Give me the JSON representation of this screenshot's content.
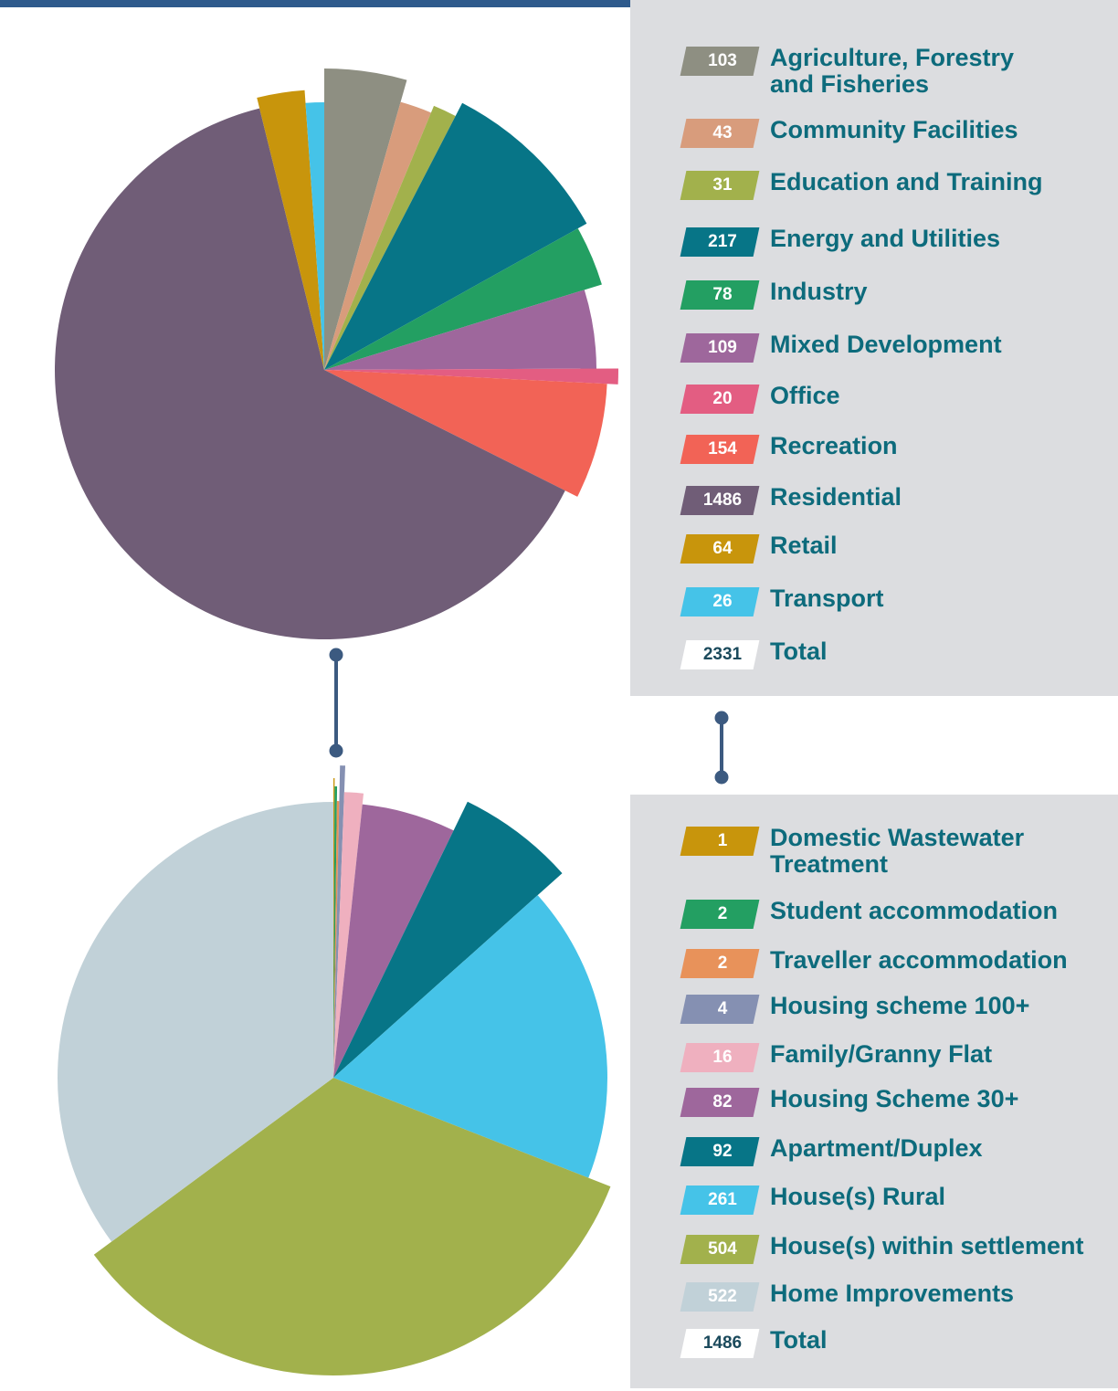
{
  "chart_data": [
    {
      "type": "pie",
      "categories": [
        "Agriculture, Forestry\nand Fisheries",
        "Community Facilities",
        "Education and Training",
        "Energy and Utilities",
        "Industry",
        "Mixed Development",
        "Office",
        "Recreation",
        "Residential",
        "Retail",
        "Transport"
      ],
      "values": [
        103,
        43,
        31,
        217,
        78,
        109,
        20,
        154,
        1486,
        64,
        26
      ],
      "colors": [
        "#8e8f82",
        "#d89c7c",
        "#a2b14c",
        "#077587",
        "#239f62",
        "#9e679c",
        "#e35d82",
        "#f26356",
        "#705d77",
        "#c8950c",
        "#45c3e8"
      ],
      "total": 2331,
      "total_label": "Total"
    },
    {
      "type": "pie",
      "categories": [
        "Domestic Wastewater\nTreatment",
        "Student accommodation",
        "Traveller accommodation",
        "Housing scheme 100+",
        "Family/Granny Flat",
        "Housing Scheme 30+",
        "Apartment/Duplex",
        "House(s) Rural",
        "House(s) within settlement",
        "Home Improvements"
      ],
      "values": [
        1,
        2,
        2,
        4,
        16,
        82,
        92,
        261,
        504,
        522
      ],
      "colors": [
        "#c8950c",
        "#239f62",
        "#e8925a",
        "#8590b2",
        "#efb0bf",
        "#9e679c",
        "#077587",
        "#45c3e8",
        "#a2b14c",
        "#c1d1d8"
      ],
      "total": 1486,
      "total_label": "Total"
    }
  ]
}
